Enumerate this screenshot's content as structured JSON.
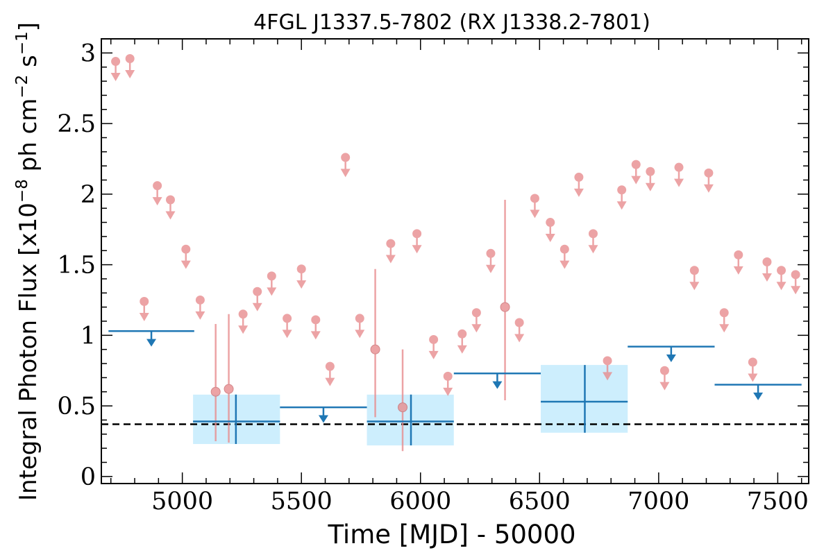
{
  "chart_data": {
    "type": "scatter",
    "title": "4FGL J1337.5-7802 (RX J1338.2-7801)",
    "xlabel": "Time [MJD] - 50000",
    "ylabel_text": "Integral Photon Flux [x10",
    "ylabel_exp1": "−8",
    "ylabel_mid": " ph cm",
    "ylabel_exp2": "−2",
    "ylabel_s": " s",
    "ylabel_exp3": "−1",
    "ylabel_end": "]",
    "xlim": [
      4660,
      7630
    ],
    "ylim": [
      -0.05,
      3.1
    ],
    "xticks": [
      5000,
      5500,
      6000,
      6500,
      7000,
      7500
    ],
    "yticks": [
      0,
      0.5,
      1,
      1.5,
      2,
      2.5,
      3
    ],
    "ytick_labels": [
      "0",
      "0.5",
      "1",
      "1.5",
      "2",
      "2.5",
      "3"
    ],
    "colors": {
      "short_bins": "#e88d8f",
      "long_bins": "#1f77b4",
      "error_box": "#cdeefd",
      "reference_line": "#000000"
    },
    "reference_line_y": 0.37,
    "short_bin_upper_limits": [
      {
        "x": 4720,
        "y": 2.94
      },
      {
        "x": 4780,
        "y": 2.96
      },
      {
        "x": 4840,
        "y": 1.24
      },
      {
        "x": 4895,
        "y": 2.06
      },
      {
        "x": 4950,
        "y": 1.96
      },
      {
        "x": 5015,
        "y": 1.61
      },
      {
        "x": 5075,
        "y": 1.25
      },
      {
        "x": 5255,
        "y": 1.15
      },
      {
        "x": 5315,
        "y": 1.31
      },
      {
        "x": 5375,
        "y": 1.42
      },
      {
        "x": 5440,
        "y": 1.12
      },
      {
        "x": 5500,
        "y": 1.47
      },
      {
        "x": 5560,
        "y": 1.11
      },
      {
        "x": 5620,
        "y": 0.78
      },
      {
        "x": 5685,
        "y": 2.26
      },
      {
        "x": 5745,
        "y": 1.12
      },
      {
        "x": 5875,
        "y": 1.65
      },
      {
        "x": 5985,
        "y": 1.72
      },
      {
        "x": 6055,
        "y": 0.97
      },
      {
        "x": 6115,
        "y": 0.71
      },
      {
        "x": 6175,
        "y": 1.01
      },
      {
        "x": 6235,
        "y": 1.16
      },
      {
        "x": 6295,
        "y": 1.58
      },
      {
        "x": 6415,
        "y": 1.09
      },
      {
        "x": 6480,
        "y": 1.97
      },
      {
        "x": 6545,
        "y": 1.8
      },
      {
        "x": 6605,
        "y": 1.61
      },
      {
        "x": 6665,
        "y": 2.12
      },
      {
        "x": 6725,
        "y": 1.72
      },
      {
        "x": 6785,
        "y": 0.82
      },
      {
        "x": 6845,
        "y": 2.03
      },
      {
        "x": 6905,
        "y": 2.21
      },
      {
        "x": 6965,
        "y": 2.16
      },
      {
        "x": 7025,
        "y": 0.75
      },
      {
        "x": 7085,
        "y": 2.19
      },
      {
        "x": 7150,
        "y": 1.46
      },
      {
        "x": 7210,
        "y": 2.15
      },
      {
        "x": 7275,
        "y": 1.16
      },
      {
        "x": 7335,
        "y": 1.57
      },
      {
        "x": 7395,
        "y": 0.81
      },
      {
        "x": 7455,
        "y": 1.52
      },
      {
        "x": 7515,
        "y": 1.46
      },
      {
        "x": 7575,
        "y": 1.43
      }
    ],
    "short_bin_detections": [
      {
        "x": 5140,
        "y": 0.6,
        "ylo": 0.25,
        "yhi": 1.08
      },
      {
        "x": 5195,
        "y": 0.62,
        "ylo": 0.24,
        "yhi": 1.15
      },
      {
        "x": 5810,
        "y": 0.9,
        "ylo": 0.42,
        "yhi": 1.47
      },
      {
        "x": 5925,
        "y": 0.49,
        "ylo": 0.18,
        "yhi": 0.9
      },
      {
        "x": 6355,
        "y": 1.2,
        "ylo": 0.54,
        "yhi": 1.96
      }
    ],
    "long_bin_upper_limits": [
      {
        "x0": 4690,
        "x1": 5050,
        "y": 1.03
      },
      {
        "x0": 5410,
        "x1": 5775,
        "y": 0.49
      },
      {
        "x0": 6140,
        "x1": 6505,
        "y": 0.73
      },
      {
        "x0": 6870,
        "x1": 7235,
        "y": 0.92
      },
      {
        "x0": 7235,
        "x1": 7600,
        "y": 0.65
      }
    ],
    "long_bin_detections": [
      {
        "x0": 5045,
        "x1": 5410,
        "xc": 5225,
        "y": 0.39,
        "ylo": 0.23,
        "yhi": 0.58
      },
      {
        "x0": 5775,
        "x1": 6140,
        "xc": 5960,
        "y": 0.39,
        "ylo": 0.22,
        "yhi": 0.58
      },
      {
        "x0": 6505,
        "x1": 6870,
        "xc": 6690,
        "y": 0.53,
        "ylo": 0.31,
        "yhi": 0.79
      }
    ]
  }
}
